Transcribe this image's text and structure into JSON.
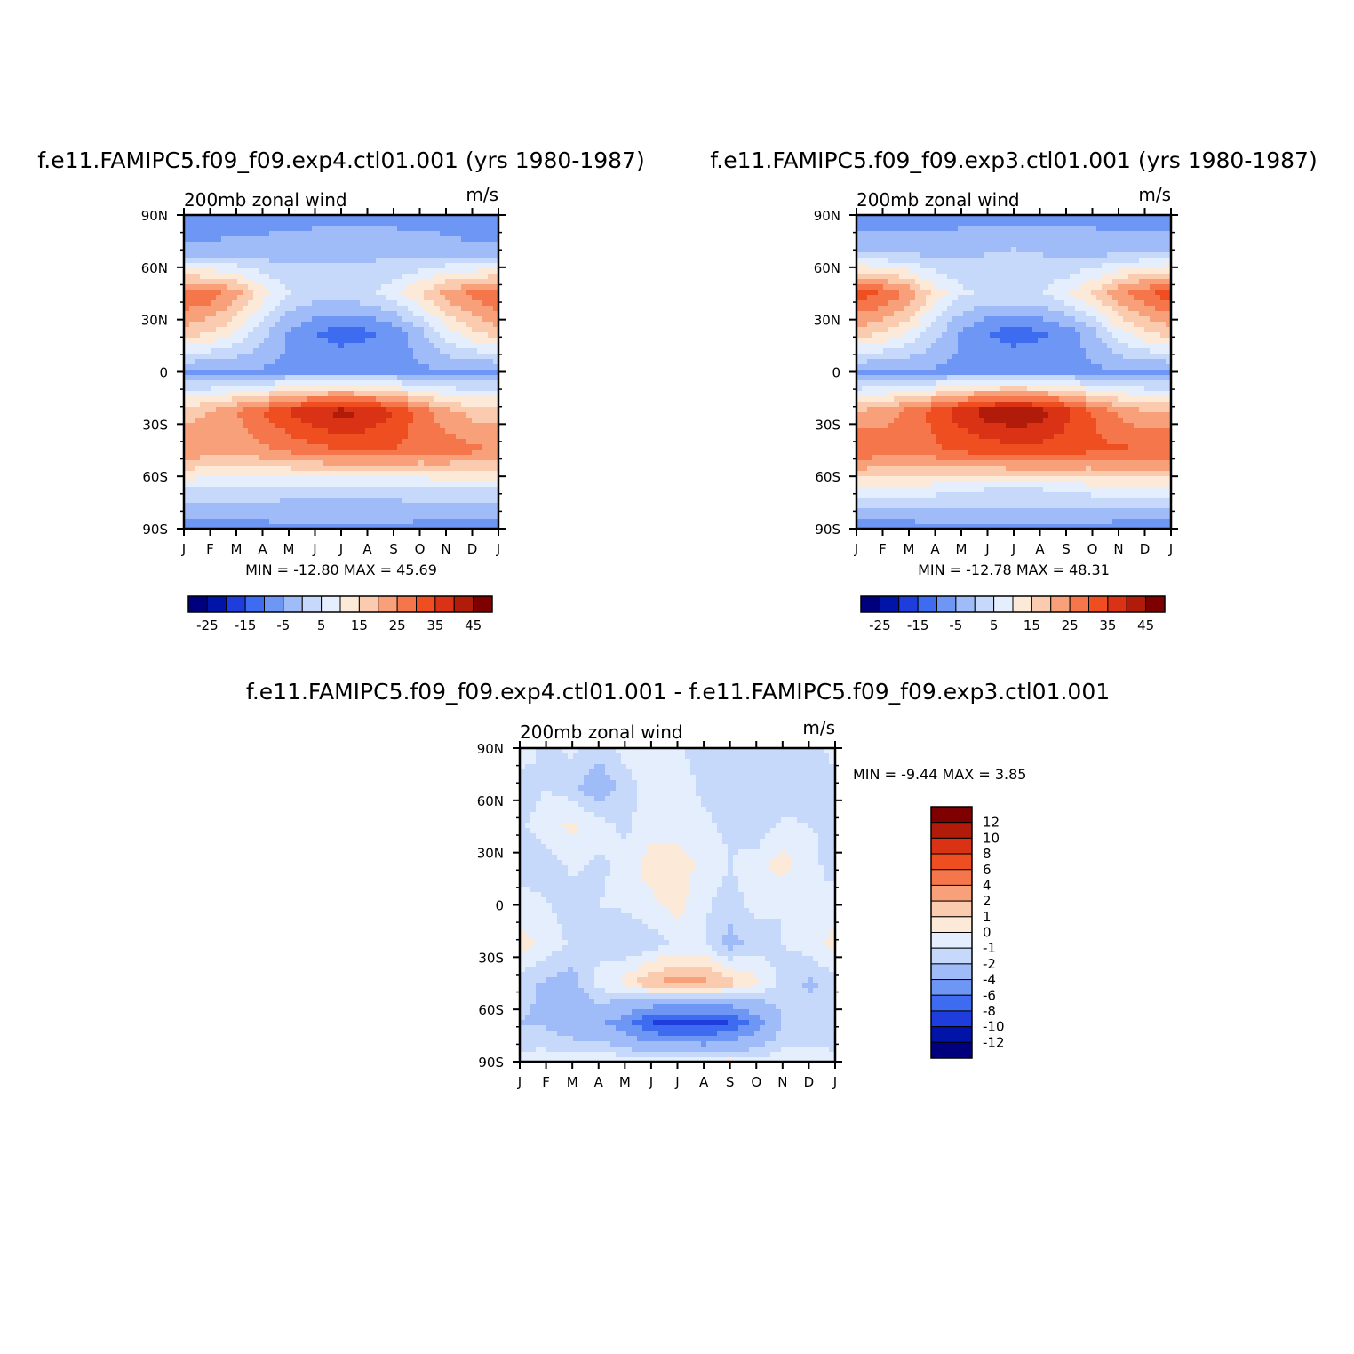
{
  "chart_data": [
    {
      "type": "heatmap",
      "title": "f.e11.FAMIPC5.f09_f09.exp4.ctl01.001 (yrs 1980-1987)",
      "left_label": "200mb zonal wind",
      "right_label": "m/s",
      "x_ticks": [
        "J",
        "F",
        "M",
        "A",
        "M",
        "J",
        "J",
        "A",
        "S",
        "O",
        "N",
        "D",
        "J"
      ],
      "y_ticks": [
        "90N",
        "60N",
        "30N",
        "0",
        "30S",
        "60S",
        "90S"
      ],
      "min_max_text": "MIN = -12.80 MAX = 45.69",
      "levels": [
        -25,
        -20,
        -15,
        -10,
        -5,
        0,
        5,
        10,
        15,
        20,
        25,
        30,
        35,
        40,
        45
      ],
      "colorbar_labels": [
        "-25",
        "-15",
        "-5",
        "5",
        "15",
        "25",
        "35",
        "45"
      ],
      "colors": [
        "#00007f",
        "#0014a8",
        "#1f3ddc",
        "#3d6cf0",
        "#6e97f5",
        "#9fbcf8",
        "#c7d9fb",
        "#e5eefd",
        "#fde9d8",
        "#fbcbb0",
        "#f8a07a",
        "#f5764a",
        "#ee4e20",
        "#d93215",
        "#b11c0a",
        "#7f0000"
      ],
      "data": [
        [
          -10,
          -9,
          -8,
          -8,
          -7,
          -7,
          -7,
          -7,
          -7,
          -7,
          -8,
          -9,
          -10
        ],
        [
          -3,
          -3,
          -2,
          -2,
          -2,
          -1,
          -1,
          -1,
          -1,
          -2,
          -2,
          -3,
          -3
        ],
        [
          30,
          28,
          22,
          12,
          5,
          3,
          3,
          4,
          8,
          15,
          22,
          27,
          30
        ],
        [
          18,
          15,
          10,
          2,
          -6,
          -10,
          -12,
          -11,
          -8,
          -2,
          8,
          14,
          18
        ],
        [
          -6,
          -6,
          -6,
          -6,
          -6,
          -6,
          -6,
          -6,
          -6,
          -6,
          -6,
          -6,
          -6
        ],
        [
          18,
          20,
          25,
          30,
          36,
          40,
          42,
          40,
          35,
          28,
          22,
          18,
          18
        ],
        [
          25,
          22,
          22,
          24,
          26,
          28,
          30,
          30,
          30,
          28,
          28,
          26,
          25
        ],
        [
          5,
          5,
          4,
          3,
          2,
          2,
          2,
          2,
          2,
          3,
          4,
          5,
          5
        ],
        [
          -9,
          -9,
          -8,
          -7,
          -6,
          -6,
          -6,
          -6,
          -6,
          -7,
          -8,
          -9,
          -9
        ]
      ]
    },
    {
      "type": "heatmap",
      "title": "f.e11.FAMIPC5.f09_f09.exp3.ctl01.001 (yrs 1980-1987)",
      "left_label": "200mb zonal wind",
      "right_label": "m/s",
      "x_ticks": [
        "J",
        "F",
        "M",
        "A",
        "M",
        "J",
        "J",
        "A",
        "S",
        "O",
        "N",
        "D",
        "J"
      ],
      "y_ticks": [
        "90N",
        "60N",
        "30N",
        "0",
        "30S",
        "60S",
        "90S"
      ],
      "min_max_text": "MIN = -12.78 MAX = 48.31",
      "levels": [
        -25,
        -20,
        -15,
        -10,
        -5,
        0,
        5,
        10,
        15,
        20,
        25,
        30,
        35,
        40,
        45
      ],
      "colorbar_labels": [
        "-25",
        "-15",
        "-5",
        "5",
        "15",
        "25",
        "35",
        "45"
      ],
      "colors": [
        "#00007f",
        "#0014a8",
        "#1f3ddc",
        "#3d6cf0",
        "#6e97f5",
        "#9fbcf8",
        "#c7d9fb",
        "#e5eefd",
        "#fde9d8",
        "#fbcbb0",
        "#f8a07a",
        "#f5764a",
        "#ee4e20",
        "#d93215",
        "#b11c0a",
        "#7f0000"
      ],
      "data": [
        [
          -10,
          -9,
          -8,
          -8,
          -7,
          -7,
          -7,
          -7,
          -7,
          -7,
          -8,
          -9,
          -10
        ],
        [
          1,
          1,
          0,
          -1,
          -1,
          0,
          1,
          0,
          -1,
          -1,
          0,
          1,
          1
        ],
        [
          33,
          30,
          24,
          13,
          6,
          4,
          4,
          5,
          9,
          16,
          24,
          29,
          33
        ],
        [
          18,
          15,
          10,
          2,
          -6,
          -10,
          -12,
          -11,
          -8,
          -2,
          8,
          14,
          18
        ],
        [
          -6,
          -6,
          -6,
          -6,
          -6,
          -6,
          -6,
          -6,
          -6,
          -6,
          -6,
          -6,
          -6
        ],
        [
          20,
          22,
          27,
          32,
          38,
          43,
          45,
          43,
          37,
          30,
          24,
          20,
          20
        ],
        [
          30,
          28,
          27,
          29,
          31,
          32,
          33,
          33,
          32,
          31,
          31,
          30,
          30
        ],
        [
          9,
          9,
          8,
          7,
          6,
          5,
          5,
          5,
          6,
          7,
          8,
          9,
          9
        ],
        [
          -9,
          -9,
          -8,
          -7,
          -6,
          -6,
          -6,
          -6,
          -6,
          -7,
          -8,
          -9,
          -9
        ]
      ]
    },
    {
      "type": "heatmap",
      "title": "f.e11.FAMIPC5.f09_f09.exp4.ctl01.001 - f.e11.FAMIPC5.f09_f09.exp3.ctl01.001",
      "left_label": "200mb zonal wind",
      "right_label": "m/s",
      "x_ticks": [
        "J",
        "F",
        "M",
        "A",
        "M",
        "J",
        "J",
        "A",
        "S",
        "O",
        "N",
        "D",
        "J"
      ],
      "y_ticks": [
        "90N",
        "60N",
        "30N",
        "0",
        "30S",
        "60S",
        "90S"
      ],
      "min_max_text": "MIN = -9.44 MAX = 3.85",
      "levels": [
        -12,
        -10,
        -8,
        -6,
        -4,
        -2,
        -1,
        0,
        1,
        2,
        4,
        6,
        8,
        10,
        12
      ],
      "colorbar_labels": [
        "12",
        "10",
        "8",
        "6",
        "4",
        "2",
        "1",
        "0",
        "-1",
        "-2",
        "-4",
        "-6",
        "-8",
        "-10",
        "-12"
      ],
      "colors": [
        "#00007f",
        "#0014a8",
        "#1f3ddc",
        "#3d6cf0",
        "#6e97f5",
        "#9fbcf8",
        "#c7d9fb",
        "#e5eefd",
        "#fde9d8",
        "#fbcbb0",
        "#f8a07a",
        "#f5764a",
        "#ee4e20",
        "#d93215",
        "#b11c0a",
        "#7f0000"
      ],
      "data": [
        [
          -0.5,
          -1.2,
          -0.8,
          -1.5,
          -0.6,
          -0.3,
          -0.8,
          -1.5,
          -1.3,
          -1.2,
          -1.5,
          -1.8,
          -0.5
        ],
        [
          -1.5,
          -1.0,
          -1.6,
          -3,
          -1.5,
          -0.5,
          -0.5,
          -1.2,
          -1.5,
          -2,
          -1.8,
          -1.2,
          -1.5
        ],
        [
          -1.2,
          -0.5,
          0.3,
          -0.5,
          -1.2,
          -0.4,
          -0.5,
          -0.8,
          -1.2,
          -1.6,
          -0.8,
          -1.0,
          -1.2
        ],
        [
          -1.5,
          -1.6,
          -0.8,
          -1.2,
          -0.7,
          0.5,
          0.6,
          -0.3,
          -1.0,
          -0.5,
          0.5,
          -0.6,
          -1.5
        ],
        [
          -0.5,
          -0.9,
          -1.5,
          -1.0,
          -0.8,
          -0.3,
          0.4,
          -0.8,
          -1.5,
          -0.6,
          -1.0,
          -1.0,
          -0.5
        ],
        [
          0.5,
          -0.4,
          -1.2,
          -1.5,
          -2,
          -1.5,
          -0.8,
          -1.0,
          -2.5,
          -1.6,
          -1.0,
          -0.6,
          0.5
        ],
        [
          -1.5,
          -2.2,
          -2.5,
          -0.5,
          0.3,
          2,
          2.5,
          2.5,
          1.5,
          0.3,
          -1.5,
          -2.2,
          -1.5
        ],
        [
          -2,
          -2.2,
          -3,
          -3.5,
          -5,
          -8,
          -9,
          -8.5,
          -8,
          -5,
          -2,
          -1.5,
          -2
        ],
        [
          -0.6,
          -0.4,
          -0.5,
          -0.3,
          -0.2,
          -0.2,
          0.3,
          -0.3,
          0.4,
          -0.5,
          -0.4,
          -0.6,
          -0.6
        ]
      ]
    }
  ]
}
